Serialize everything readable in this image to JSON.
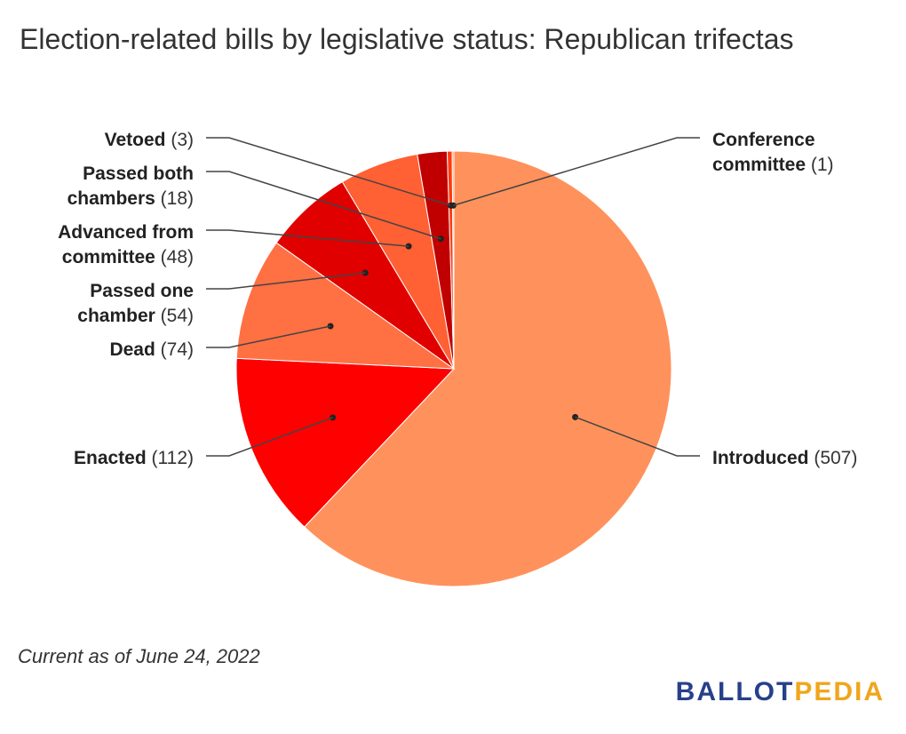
{
  "title": "Election-related bills by legislative status: Republican trifectas",
  "footnote": "Current as of June 24, 2022",
  "logo": {
    "part1": "BALLOT",
    "part2": "PEDIA"
  },
  "chart_data": {
    "type": "pie",
    "title": "Election-related bills by legislative status: Republican trifectas",
    "start": "top",
    "direction": "clockwise",
    "slices": [
      {
        "label": "Introduced",
        "value": 507,
        "color": "#ff925c",
        "side": "right",
        "label_lines": [
          "Introduced"
        ]
      },
      {
        "label": "Enacted",
        "value": 112,
        "color": "#ff0000",
        "side": "left",
        "label_lines": [
          "Enacted"
        ]
      },
      {
        "label": "Dead",
        "value": 74,
        "color": "#ff7043",
        "side": "left",
        "label_lines": [
          "Dead"
        ]
      },
      {
        "label": "Passed one chamber",
        "value": 54,
        "color": "#e00000",
        "side": "left",
        "label_lines": [
          "Passed one",
          "chamber"
        ]
      },
      {
        "label": "Advanced from committee",
        "value": 48,
        "color": "#ff6034",
        "side": "left",
        "label_lines": [
          "Advanced from",
          "committee"
        ]
      },
      {
        "label": "Passed both chambers",
        "value": 18,
        "color": "#c00000",
        "side": "left",
        "label_lines": [
          "Passed both",
          "chambers"
        ]
      },
      {
        "label": "Vetoed",
        "value": 3,
        "color": "#ff3a10",
        "side": "left",
        "label_lines": [
          "Vetoed"
        ]
      },
      {
        "label": "Conference committee",
        "value": 1,
        "color": "#ff8a4c",
        "side": "right",
        "label_lines": [
          "Conference",
          "committee"
        ]
      }
    ]
  }
}
